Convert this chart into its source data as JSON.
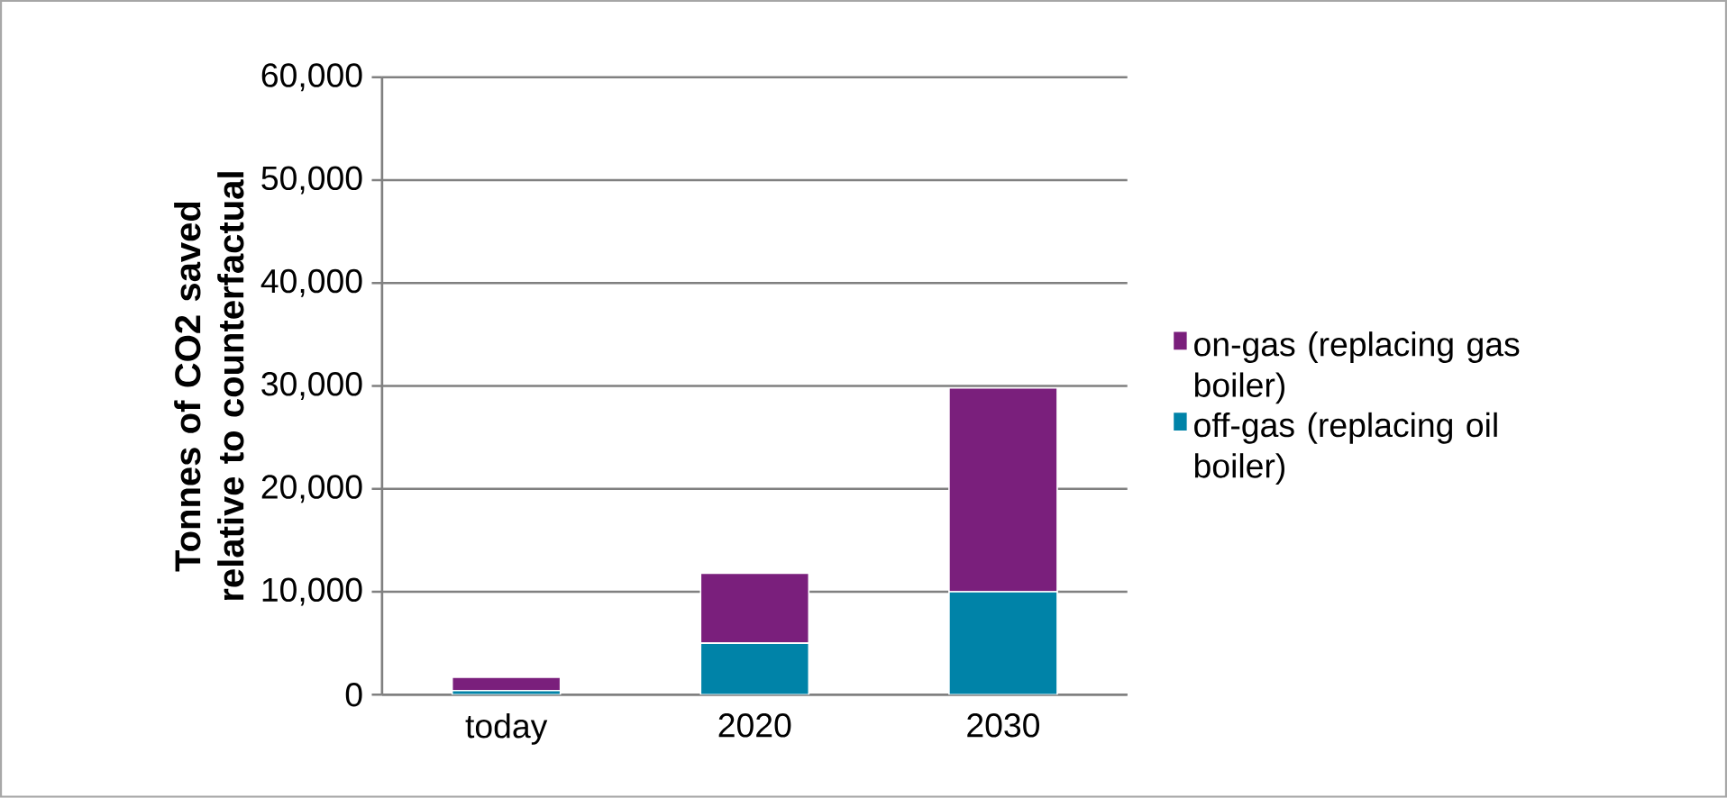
{
  "chart_data": {
    "type": "bar",
    "stacked": true,
    "ylabel": "Tonnes of CO2 saved relative to counterfactual",
    "categories": [
      "today",
      "2020",
      "2030"
    ],
    "series": [
      {
        "name": "off-gas (replacing oil boiler)",
        "color": "#0083a8",
        "values": [
          400,
          5000,
          10000
        ]
      },
      {
        "name": "on-gas (replacing gas boiler)",
        "color": "#7a1f7c",
        "values": [
          1300,
          6800,
          19800
        ]
      }
    ],
    "ylim": [
      0,
      60000
    ],
    "yticks": [
      {
        "value": 0,
        "label": "0"
      },
      {
        "value": 10000,
        "label": "10,000"
      },
      {
        "value": 20000,
        "label": "20,000"
      },
      {
        "value": 30000,
        "label": "30,000"
      },
      {
        "value": 40000,
        "label": "40,000"
      },
      {
        "value": 50000,
        "label": "50,000"
      },
      {
        "value": 60000,
        "label": "60,000"
      }
    ],
    "grid": "y",
    "legend": "right"
  }
}
